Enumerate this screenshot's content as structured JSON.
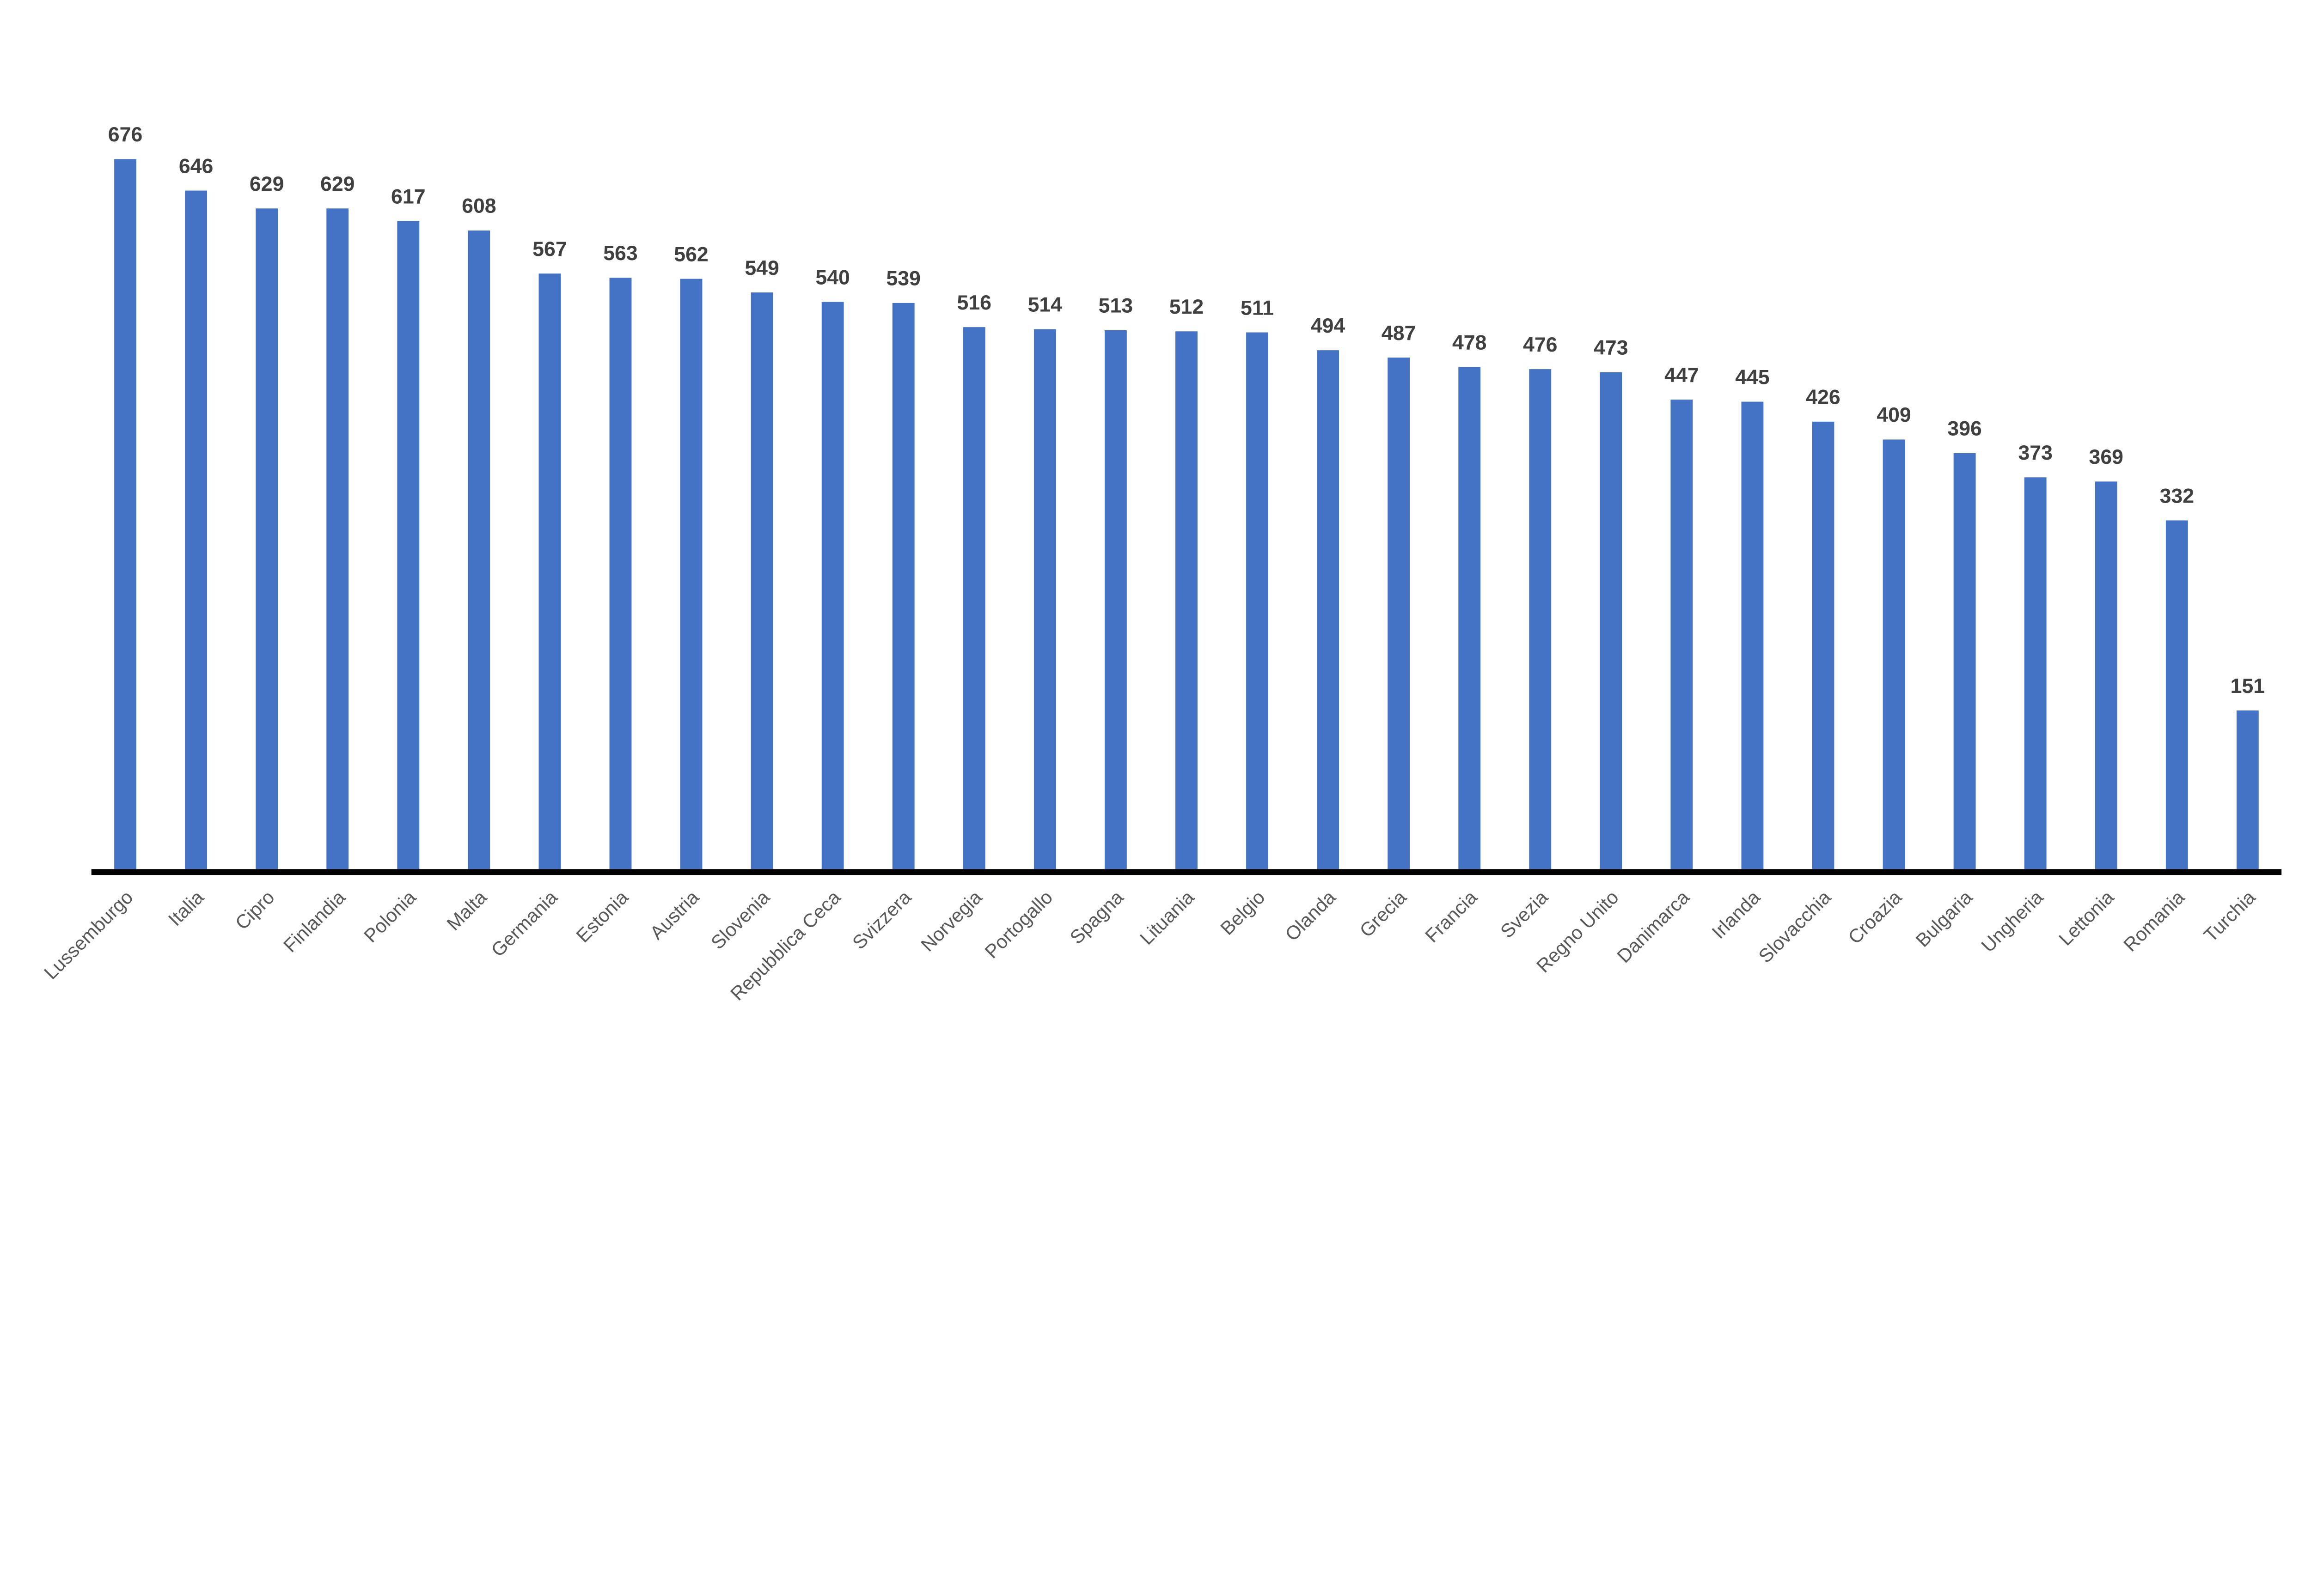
{
  "chart_data": {
    "type": "bar",
    "title": "",
    "xlabel": "",
    "ylabel": "",
    "ylim": [
      0,
      676
    ],
    "grid": false,
    "legend": "none",
    "bar_color": "#4472C4",
    "axis_color": "#000000",
    "label_color": "#404040",
    "category_color": "#595959",
    "categories": [
      "Lussemburgo",
      "Italia",
      "Cipro",
      "Finlandia",
      "Polonia",
      "Malta",
      "Germania",
      "Estonia",
      "Austria",
      "Slovenia",
      "Repubblica Ceca",
      "Svizzera",
      "Norvegia",
      "Portogallo",
      "Spagna",
      "Lituania",
      "Belgio",
      "Olanda",
      "Grecia",
      "Francia",
      "Svezia",
      "Regno Unito",
      "Danimarca",
      "Irlanda",
      "Slovacchia",
      "Croazia",
      "Bulgaria",
      "Ungheria",
      "Lettonia",
      "Romania",
      "Turchia"
    ],
    "values": [
      676,
      646,
      629,
      629,
      617,
      608,
      567,
      563,
      562,
      549,
      540,
      539,
      516,
      514,
      513,
      512,
      511,
      494,
      487,
      478,
      476,
      473,
      447,
      445,
      426,
      409,
      396,
      373,
      369,
      332,
      151
    ]
  }
}
